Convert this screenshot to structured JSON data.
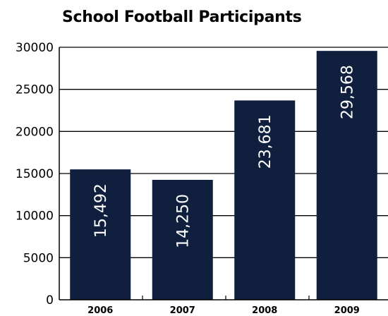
{
  "chart_data": {
    "type": "bar",
    "title": "School Football Participants",
    "categories": [
      "2006",
      "2007",
      "2008",
      "2009"
    ],
    "values": [
      15492,
      14250,
      23681,
      29568
    ],
    "data_labels": [
      "15,492",
      "14,250",
      "23,681",
      "29,568"
    ],
    "y_ticks": [
      "0",
      "5000",
      "10000",
      "15000",
      "20000",
      "25000",
      "30000"
    ],
    "ylim": [
      0,
      30000
    ],
    "grid": true,
    "bar_color": "#0f1f3d",
    "xlabel": "",
    "ylabel": ""
  }
}
